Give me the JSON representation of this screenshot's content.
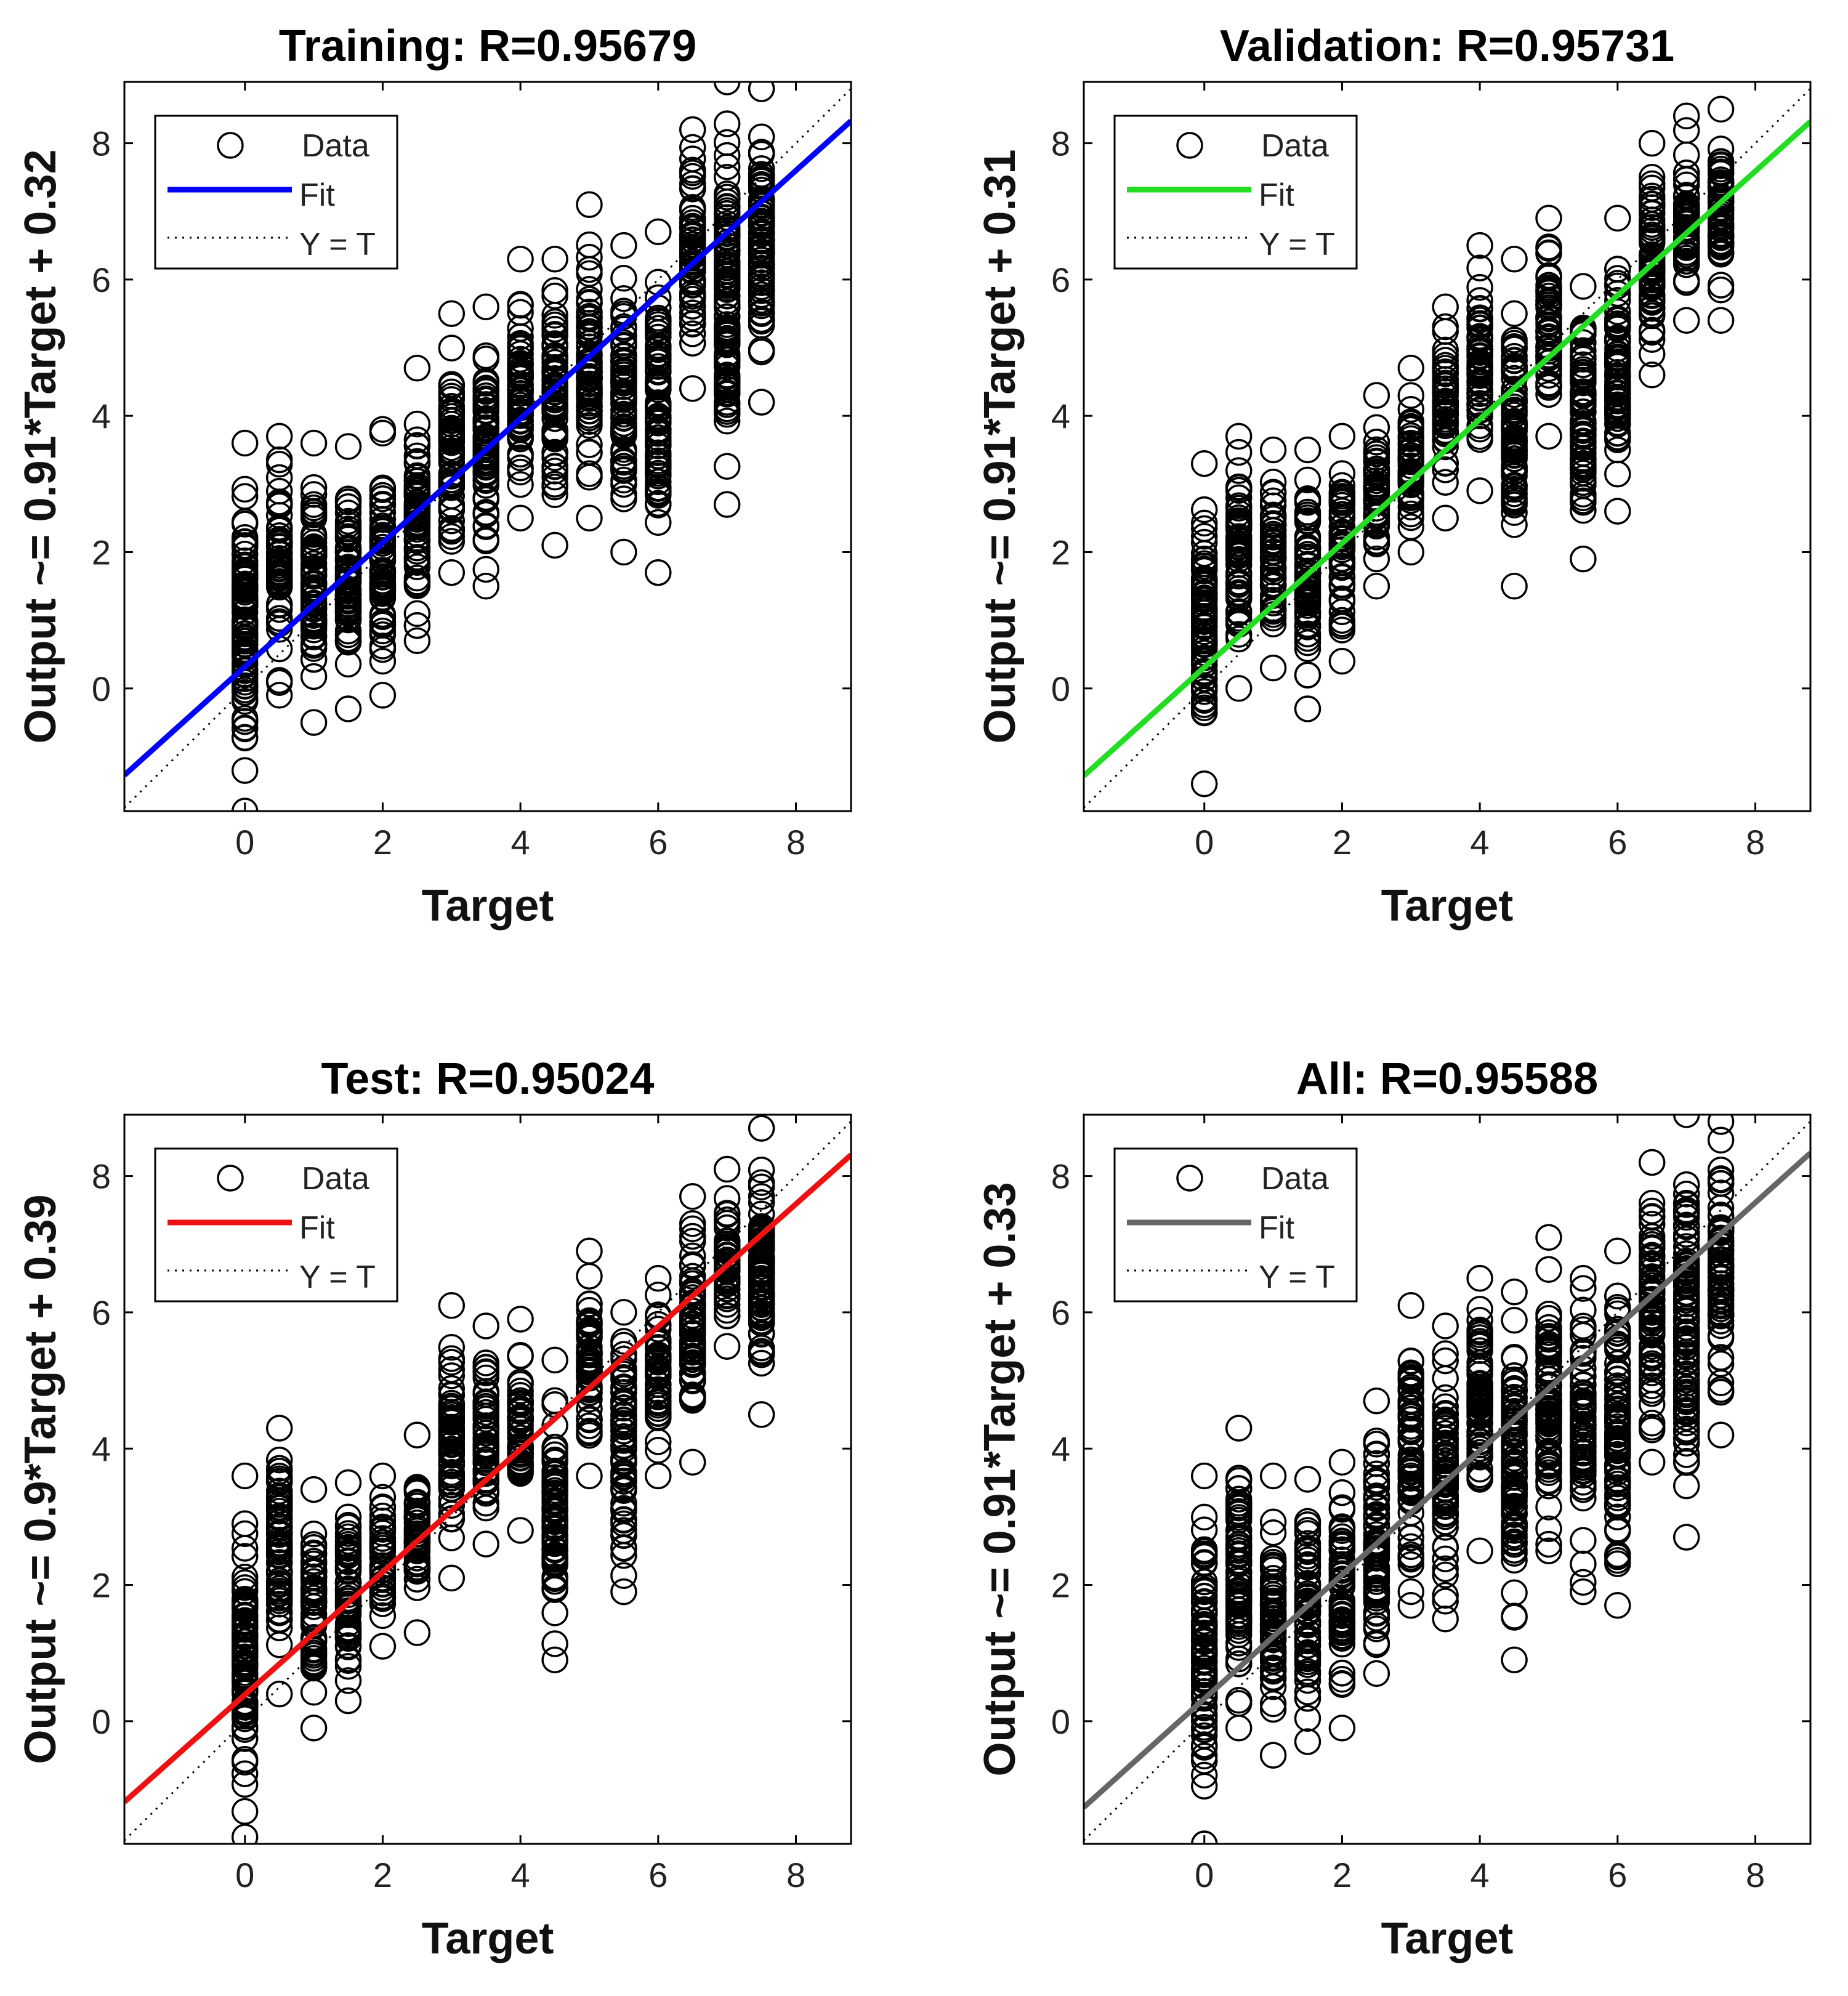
{
  "chart_data": [
    {
      "type": "scatter",
      "title": "Training: R=0.95679",
      "xlabel": "Target",
      "ylabel": "Output ~= 0.91*Target + 0.32",
      "xlim": [
        -1.75,
        8.8
      ],
      "ylim": [
        -1.8,
        8.9
      ],
      "xticks": [
        0,
        2,
        4,
        6,
        8
      ],
      "yticks": [
        0,
        2,
        4,
        6,
        8
      ],
      "fit": {
        "slope": 0.91,
        "intercept": 0.32,
        "color": "#0000ff"
      },
      "legend": {
        "data_label": "Data",
        "fit_label": "Fit",
        "identity_label": "Y = T",
        "location": "top-left"
      },
      "columns": [
        {
          "x": 0,
          "ymin": -1.8,
          "ymax": 3.6
        },
        {
          "x": 0.5,
          "ymin": -0.1,
          "ymax": 3.7
        },
        {
          "x": 1,
          "ymin": -0.5,
          "ymax": 3.6
        },
        {
          "x": 1.5,
          "ymin": -0.3,
          "ymax": 3.55
        },
        {
          "x": 2,
          "ymin": -0.1,
          "ymax": 3.8
        },
        {
          "x": 2.5,
          "ymin": 0.7,
          "ymax": 4.7
        },
        {
          "x": 3,
          "ymin": 1.7,
          "ymax": 5.5
        },
        {
          "x": 3.5,
          "ymin": 1.5,
          "ymax": 5.6
        },
        {
          "x": 4,
          "ymin": 2.5,
          "ymax": 6.3
        },
        {
          "x": 4.5,
          "ymin": 2.1,
          "ymax": 6.3
        },
        {
          "x": 5,
          "ymin": 2.5,
          "ymax": 7.1
        },
        {
          "x": 5.5,
          "ymin": 2.0,
          "ymax": 6.5
        },
        {
          "x": 6,
          "ymin": 1.7,
          "ymax": 6.7
        },
        {
          "x": 6.5,
          "ymin": 4.4,
          "ymax": 8.2
        },
        {
          "x": 7,
          "ymin": 2.7,
          "ymax": 8.9
        },
        {
          "x": 7.5,
          "ymin": 4.2,
          "ymax": 8.8
        }
      ]
    },
    {
      "type": "scatter",
      "title": "Validation: R=0.95731",
      "xlabel": "Target",
      "ylabel": "Output ~= 0.91*Target + 0.31",
      "xlim": [
        -1.75,
        8.8
      ],
      "ylim": [
        -1.8,
        8.9
      ],
      "xticks": [
        0,
        2,
        4,
        6,
        8
      ],
      "yticks": [
        0,
        2,
        4,
        6,
        8
      ],
      "fit": {
        "slope": 0.91,
        "intercept": 0.31,
        "color": "#22dd22"
      },
      "legend": {
        "data_label": "Data",
        "fit_label": "Fit",
        "identity_label": "Y = T",
        "location": "top-left"
      },
      "columns": [
        {
          "x": 0,
          "ymin": -1.4,
          "ymax": 3.3
        },
        {
          "x": 0.5,
          "ymin": 0.0,
          "ymax": 3.7
        },
        {
          "x": 1,
          "ymin": 0.3,
          "ymax": 3.5
        },
        {
          "x": 1.5,
          "ymin": -0.3,
          "ymax": 3.5
        },
        {
          "x": 2,
          "ymin": 0.4,
          "ymax": 3.7
        },
        {
          "x": 2.5,
          "ymin": 1.5,
          "ymax": 4.3
        },
        {
          "x": 3,
          "ymin": 2.0,
          "ymax": 4.7
        },
        {
          "x": 3.5,
          "ymin": 2.5,
          "ymax": 5.6
        },
        {
          "x": 4,
          "ymin": 2.9,
          "ymax": 6.5
        },
        {
          "x": 4.5,
          "ymin": 1.5,
          "ymax": 6.3
        },
        {
          "x": 5,
          "ymin": 3.7,
          "ymax": 6.9
        },
        {
          "x": 5.5,
          "ymin": 1.9,
          "ymax": 5.9
        },
        {
          "x": 6,
          "ymin": 2.6,
          "ymax": 6.9
        },
        {
          "x": 6.5,
          "ymin": 4.6,
          "ymax": 8.0
        },
        {
          "x": 7,
          "ymin": 5.4,
          "ymax": 8.4
        },
        {
          "x": 7.5,
          "ymin": 5.4,
          "ymax": 8.5
        }
      ]
    },
    {
      "type": "scatter",
      "title": "Test: R=0.95024",
      "xlabel": "Target",
      "ylabel": "Output ~= 0.9*Target + 0.39",
      "xlim": [
        -1.75,
        8.8
      ],
      "ylim": [
        -1.8,
        8.9
      ],
      "xticks": [
        0,
        2,
        4,
        6,
        8
      ],
      "yticks": [
        0,
        2,
        4,
        6,
        8
      ],
      "fit": {
        "slope": 0.9,
        "intercept": 0.39,
        "color": "#ee1111"
      },
      "legend": {
        "data_label": "Data",
        "fit_label": "Fit",
        "identity_label": "Y = T",
        "location": "top-left"
      },
      "columns": [
        {
          "x": 0,
          "ymin": -1.7,
          "ymax": 3.6
        },
        {
          "x": 0.5,
          "ymin": 0.4,
          "ymax": 4.3
        },
        {
          "x": 1,
          "ymin": -0.1,
          "ymax": 3.4
        },
        {
          "x": 1.5,
          "ymin": 0.3,
          "ymax": 3.5
        },
        {
          "x": 2,
          "ymin": 1.1,
          "ymax": 3.6
        },
        {
          "x": 2.5,
          "ymin": 1.3,
          "ymax": 4.2
        },
        {
          "x": 3,
          "ymin": 2.1,
          "ymax": 6.1
        },
        {
          "x": 3.5,
          "ymin": 2.6,
          "ymax": 5.8
        },
        {
          "x": 4,
          "ymin": 2.8,
          "ymax": 5.9
        },
        {
          "x": 4.5,
          "ymin": 0.9,
          "ymax": 5.3
        },
        {
          "x": 5,
          "ymin": 3.6,
          "ymax": 6.9
        },
        {
          "x": 5.5,
          "ymin": 1.9,
          "ymax": 6.0
        },
        {
          "x": 6,
          "ymin": 3.6,
          "ymax": 6.5
        },
        {
          "x": 6.5,
          "ymin": 3.8,
          "ymax": 7.7
        },
        {
          "x": 7,
          "ymin": 5.5,
          "ymax": 8.1
        },
        {
          "x": 7.5,
          "ymin": 4.5,
          "ymax": 8.7
        }
      ]
    },
    {
      "type": "scatter",
      "title": "All: R=0.95588",
      "xlabel": "Target",
      "ylabel": "Output ~= 0.91*Target + 0.33",
      "xlim": [
        -1.75,
        8.8
      ],
      "ylim": [
        -1.8,
        8.9
      ],
      "xticks": [
        0,
        2,
        4,
        6,
        8
      ],
      "yticks": [
        0,
        2,
        4,
        6,
        8
      ],
      "fit": {
        "slope": 0.91,
        "intercept": 0.33,
        "color": "#666666"
      },
      "legend": {
        "data_label": "Data",
        "fit_label": "Fit",
        "identity_label": "Y = T",
        "location": "top-left"
      },
      "columns": [
        {
          "x": 0,
          "ymin": -1.8,
          "ymax": 3.6
        },
        {
          "x": 0.5,
          "ymin": -0.1,
          "ymax": 4.3
        },
        {
          "x": 1,
          "ymin": -0.5,
          "ymax": 3.6
        },
        {
          "x": 1.5,
          "ymin": -0.3,
          "ymax": 3.55
        },
        {
          "x": 2,
          "ymin": -0.1,
          "ymax": 3.8
        },
        {
          "x": 2.5,
          "ymin": 0.7,
          "ymax": 4.7
        },
        {
          "x": 3,
          "ymin": 1.7,
          "ymax": 6.1
        },
        {
          "x": 3.5,
          "ymin": 1.5,
          "ymax": 5.8
        },
        {
          "x": 4,
          "ymin": 2.5,
          "ymax": 6.5
        },
        {
          "x": 4.5,
          "ymin": 0.9,
          "ymax": 6.3
        },
        {
          "x": 5,
          "ymin": 2.5,
          "ymax": 7.1
        },
        {
          "x": 5.5,
          "ymin": 1.9,
          "ymax": 6.5
        },
        {
          "x": 6,
          "ymin": 1.7,
          "ymax": 6.9
        },
        {
          "x": 6.5,
          "ymin": 3.8,
          "ymax": 8.2
        },
        {
          "x": 7,
          "ymin": 2.7,
          "ymax": 8.9
        },
        {
          "x": 7.5,
          "ymin": 4.2,
          "ymax": 8.8
        }
      ]
    }
  ]
}
